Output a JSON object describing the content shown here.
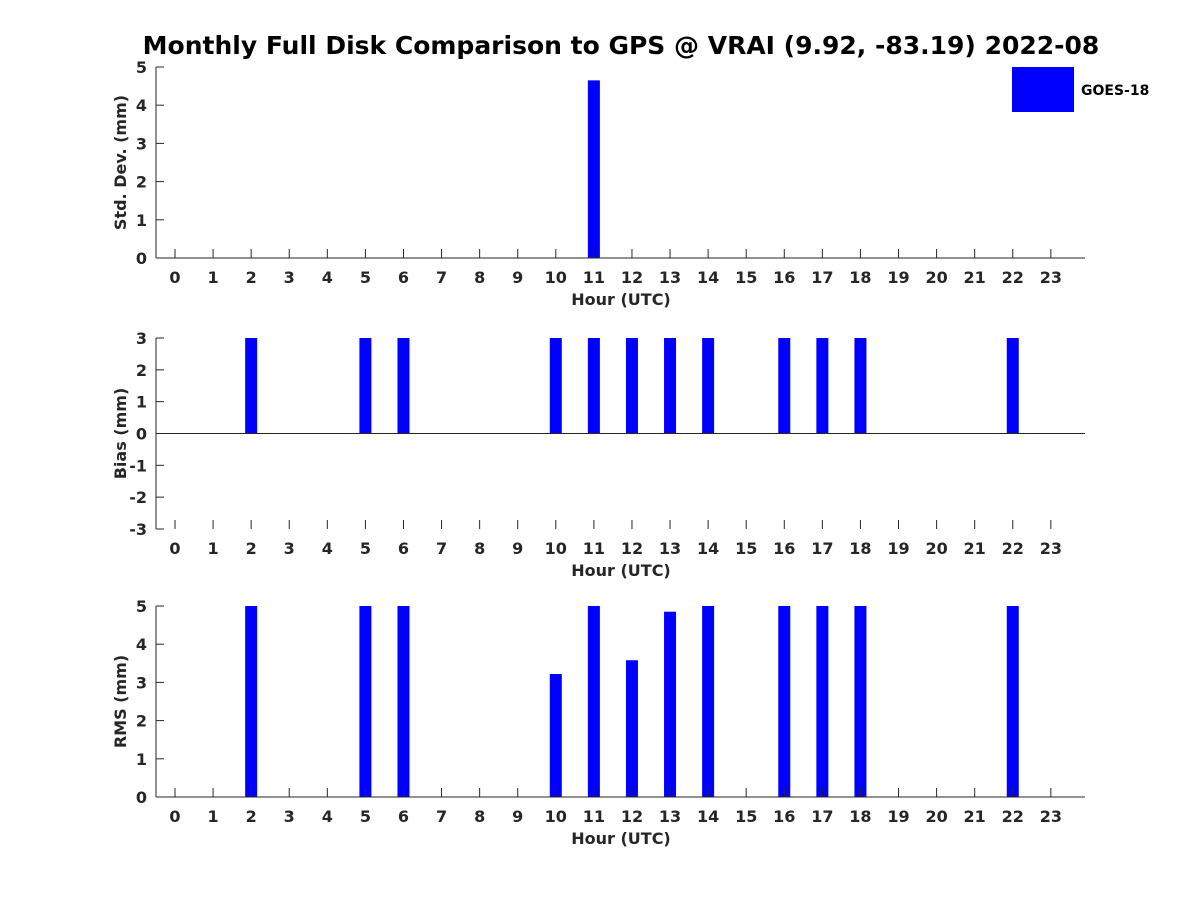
{
  "chart_data": {
    "title": "Monthly Full Disk Comparison to GPS @ VRAI (9.92, -83.19) 2022-08",
    "legend": {
      "label": "GOES-18",
      "color": "#0000ff",
      "placement": "top-right"
    },
    "panels": [
      {
        "type": "bar",
        "name": "std-dev",
        "ylabel": "Std. Dev. (mm)",
        "xlabel": "Hour (UTC)",
        "ylim": [
          0,
          5
        ],
        "yticks": [
          0,
          1,
          2,
          3,
          4,
          5
        ],
        "baseline": 0,
        "categories": [
          "0",
          "1",
          "2",
          "3",
          "4",
          "5",
          "6",
          "7",
          "8",
          "9",
          "10",
          "11",
          "12",
          "13",
          "14",
          "15",
          "16",
          "17",
          "18",
          "19",
          "20",
          "21",
          "22",
          "23"
        ],
        "series": [
          {
            "name": "GOES-18",
            "values": [
              null,
              null,
              null,
              null,
              null,
              null,
              null,
              null,
              null,
              null,
              null,
              4.65,
              null,
              null,
              null,
              null,
              null,
              null,
              null,
              null,
              null,
              null,
              null,
              null
            ]
          }
        ]
      },
      {
        "type": "bar",
        "name": "bias",
        "ylabel": "Bias (mm)",
        "xlabel": "Hour (UTC)",
        "ylim": [
          -3,
          3
        ],
        "yticks": [
          -3,
          -2,
          -1,
          0,
          1,
          2,
          3
        ],
        "baseline": 0,
        "categories": [
          "0",
          "1",
          "2",
          "3",
          "4",
          "5",
          "6",
          "7",
          "8",
          "9",
          "10",
          "11",
          "12",
          "13",
          "14",
          "15",
          "16",
          "17",
          "18",
          "19",
          "20",
          "21",
          "22",
          "23"
        ],
        "series": [
          {
            "name": "GOES-18",
            "values": [
              null,
              null,
              3,
              null,
              null,
              3,
              3,
              null,
              null,
              null,
              3,
              3,
              3,
              3,
              3,
              null,
              3,
              3,
              3,
              null,
              null,
              null,
              3,
              null
            ]
          }
        ]
      },
      {
        "type": "bar",
        "name": "rms",
        "ylabel": "RMS (mm)",
        "xlabel": "Hour (UTC)",
        "ylim": [
          0,
          5
        ],
        "yticks": [
          0,
          1,
          2,
          3,
          4,
          5
        ],
        "baseline": 0,
        "categories": [
          "0",
          "1",
          "2",
          "3",
          "4",
          "5",
          "6",
          "7",
          "8",
          "9",
          "10",
          "11",
          "12",
          "13",
          "14",
          "15",
          "16",
          "17",
          "18",
          "19",
          "20",
          "21",
          "22",
          "23"
        ],
        "series": [
          {
            "name": "GOES-18",
            "values": [
              null,
              null,
              5,
              null,
              null,
              5,
              5,
              null,
              null,
              null,
              3.22,
              5,
              3.58,
              4.85,
              5,
              null,
              5,
              5,
              5,
              null,
              null,
              null,
              5,
              null
            ]
          }
        ]
      }
    ]
  }
}
